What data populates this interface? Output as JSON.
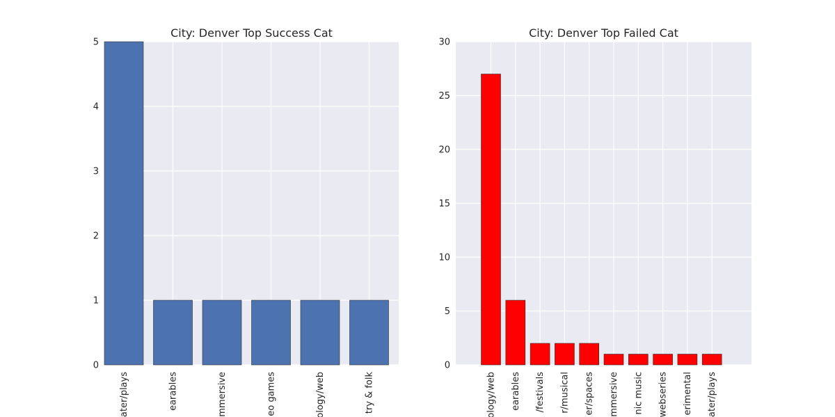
{
  "chart_data": [
    {
      "type": "bar",
      "title": "City: Denver Top Success Cat",
      "categories": [
        "theater/plays",
        "wearables",
        "immersive",
        "video games",
        "technology/web",
        "country & folk"
      ],
      "categories_visible": [
        "ater/plays",
        "earables",
        "mmersive",
        "eo games",
        "ology/web",
        "try & folk"
      ],
      "values": [
        5,
        1,
        1,
        1,
        1,
        1
      ],
      "ylim": [
        0,
        5
      ],
      "yticks": [
        0,
        1,
        2,
        3,
        4,
        5
      ],
      "bar_color": "#4c72b0",
      "grid": true
    },
    {
      "type": "bar",
      "title": "City: Denver Top Failed Cat",
      "categories": [
        "technology/web",
        "wearables",
        "film/festivals",
        "theater/musical",
        "theater/spaces",
        "immersive",
        "electronic music",
        "webseries",
        "experimental",
        "theater/plays"
      ],
      "categories_visible": [
        "ology/web",
        "earables",
        "/festivals",
        "r/musical",
        "er/spaces",
        "mmersive",
        "nic music",
        "webseries",
        "erimental",
        "ater/plays"
      ],
      "values": [
        27,
        6,
        2,
        2,
        2,
        1,
        1,
        1,
        1,
        1
      ],
      "ylim": [
        0,
        30
      ],
      "yticks": [
        0,
        5,
        10,
        15,
        20,
        25,
        30
      ],
      "bar_color": "#ff0000",
      "grid": true
    }
  ]
}
